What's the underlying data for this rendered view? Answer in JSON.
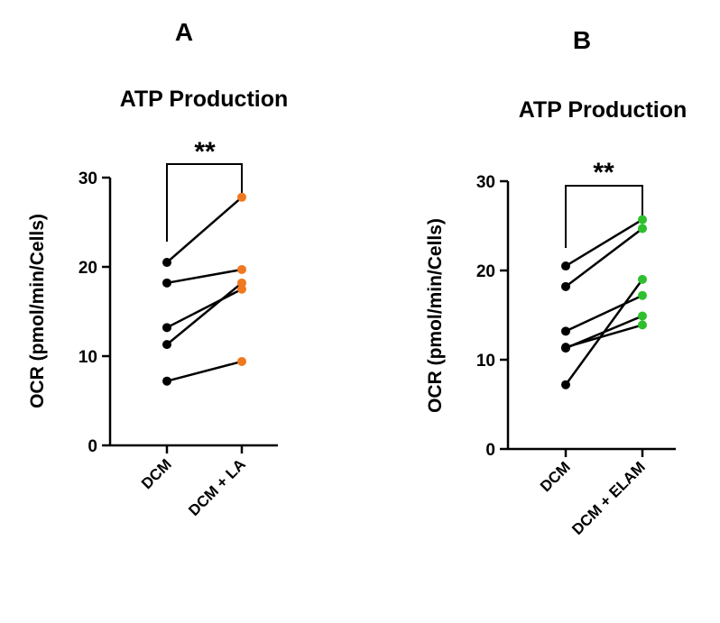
{
  "chart_data": [
    {
      "type": "line",
      "panel_label": "A",
      "title": "ATP Production",
      "ylabel": "OCR (pmol/min/Cells)",
      "ylim": [
        0,
        30
      ],
      "yticks": [
        "0",
        "10",
        "20",
        "30"
      ],
      "categories": [
        "DCM",
        "DCM + LA"
      ],
      "significance": "**",
      "colors": {
        "before": "#000000",
        "after": "#f07820"
      },
      "pairs": [
        {
          "name": "pair-1",
          "values": [
            20.5,
            27.8
          ]
        },
        {
          "name": "pair-2",
          "values": [
            18.2,
            19.7
          ]
        },
        {
          "name": "pair-3",
          "values": [
            13.2,
            17.5
          ]
        },
        {
          "name": "pair-4",
          "values": [
            11.3,
            18.2
          ]
        },
        {
          "name": "pair-5",
          "values": [
            7.2,
            9.4
          ]
        }
      ]
    },
    {
      "type": "line",
      "panel_label": "B",
      "title": "ATP Production",
      "ylabel": "OCR (pmol/min/Cells)",
      "ylim": [
        0,
        30
      ],
      "yticks": [
        "0",
        "10",
        "20",
        "30"
      ],
      "categories": [
        "DCM",
        "DCM + ELAM"
      ],
      "significance": "**",
      "colors": {
        "before": "#000000",
        "after": "#2ebf2e"
      },
      "pairs": [
        {
          "name": "pair-1",
          "values": [
            20.5,
            25.7
          ]
        },
        {
          "name": "pair-2",
          "values": [
            18.2,
            24.7
          ]
        },
        {
          "name": "pair-3",
          "values": [
            13.2,
            17.2
          ]
        },
        {
          "name": "pair-4",
          "values": [
            11.3,
            14.9
          ]
        },
        {
          "name": "pair-5",
          "values": [
            11.4,
            13.9
          ]
        },
        {
          "name": "pair-6",
          "values": [
            7.2,
            19.0
          ]
        }
      ]
    }
  ]
}
